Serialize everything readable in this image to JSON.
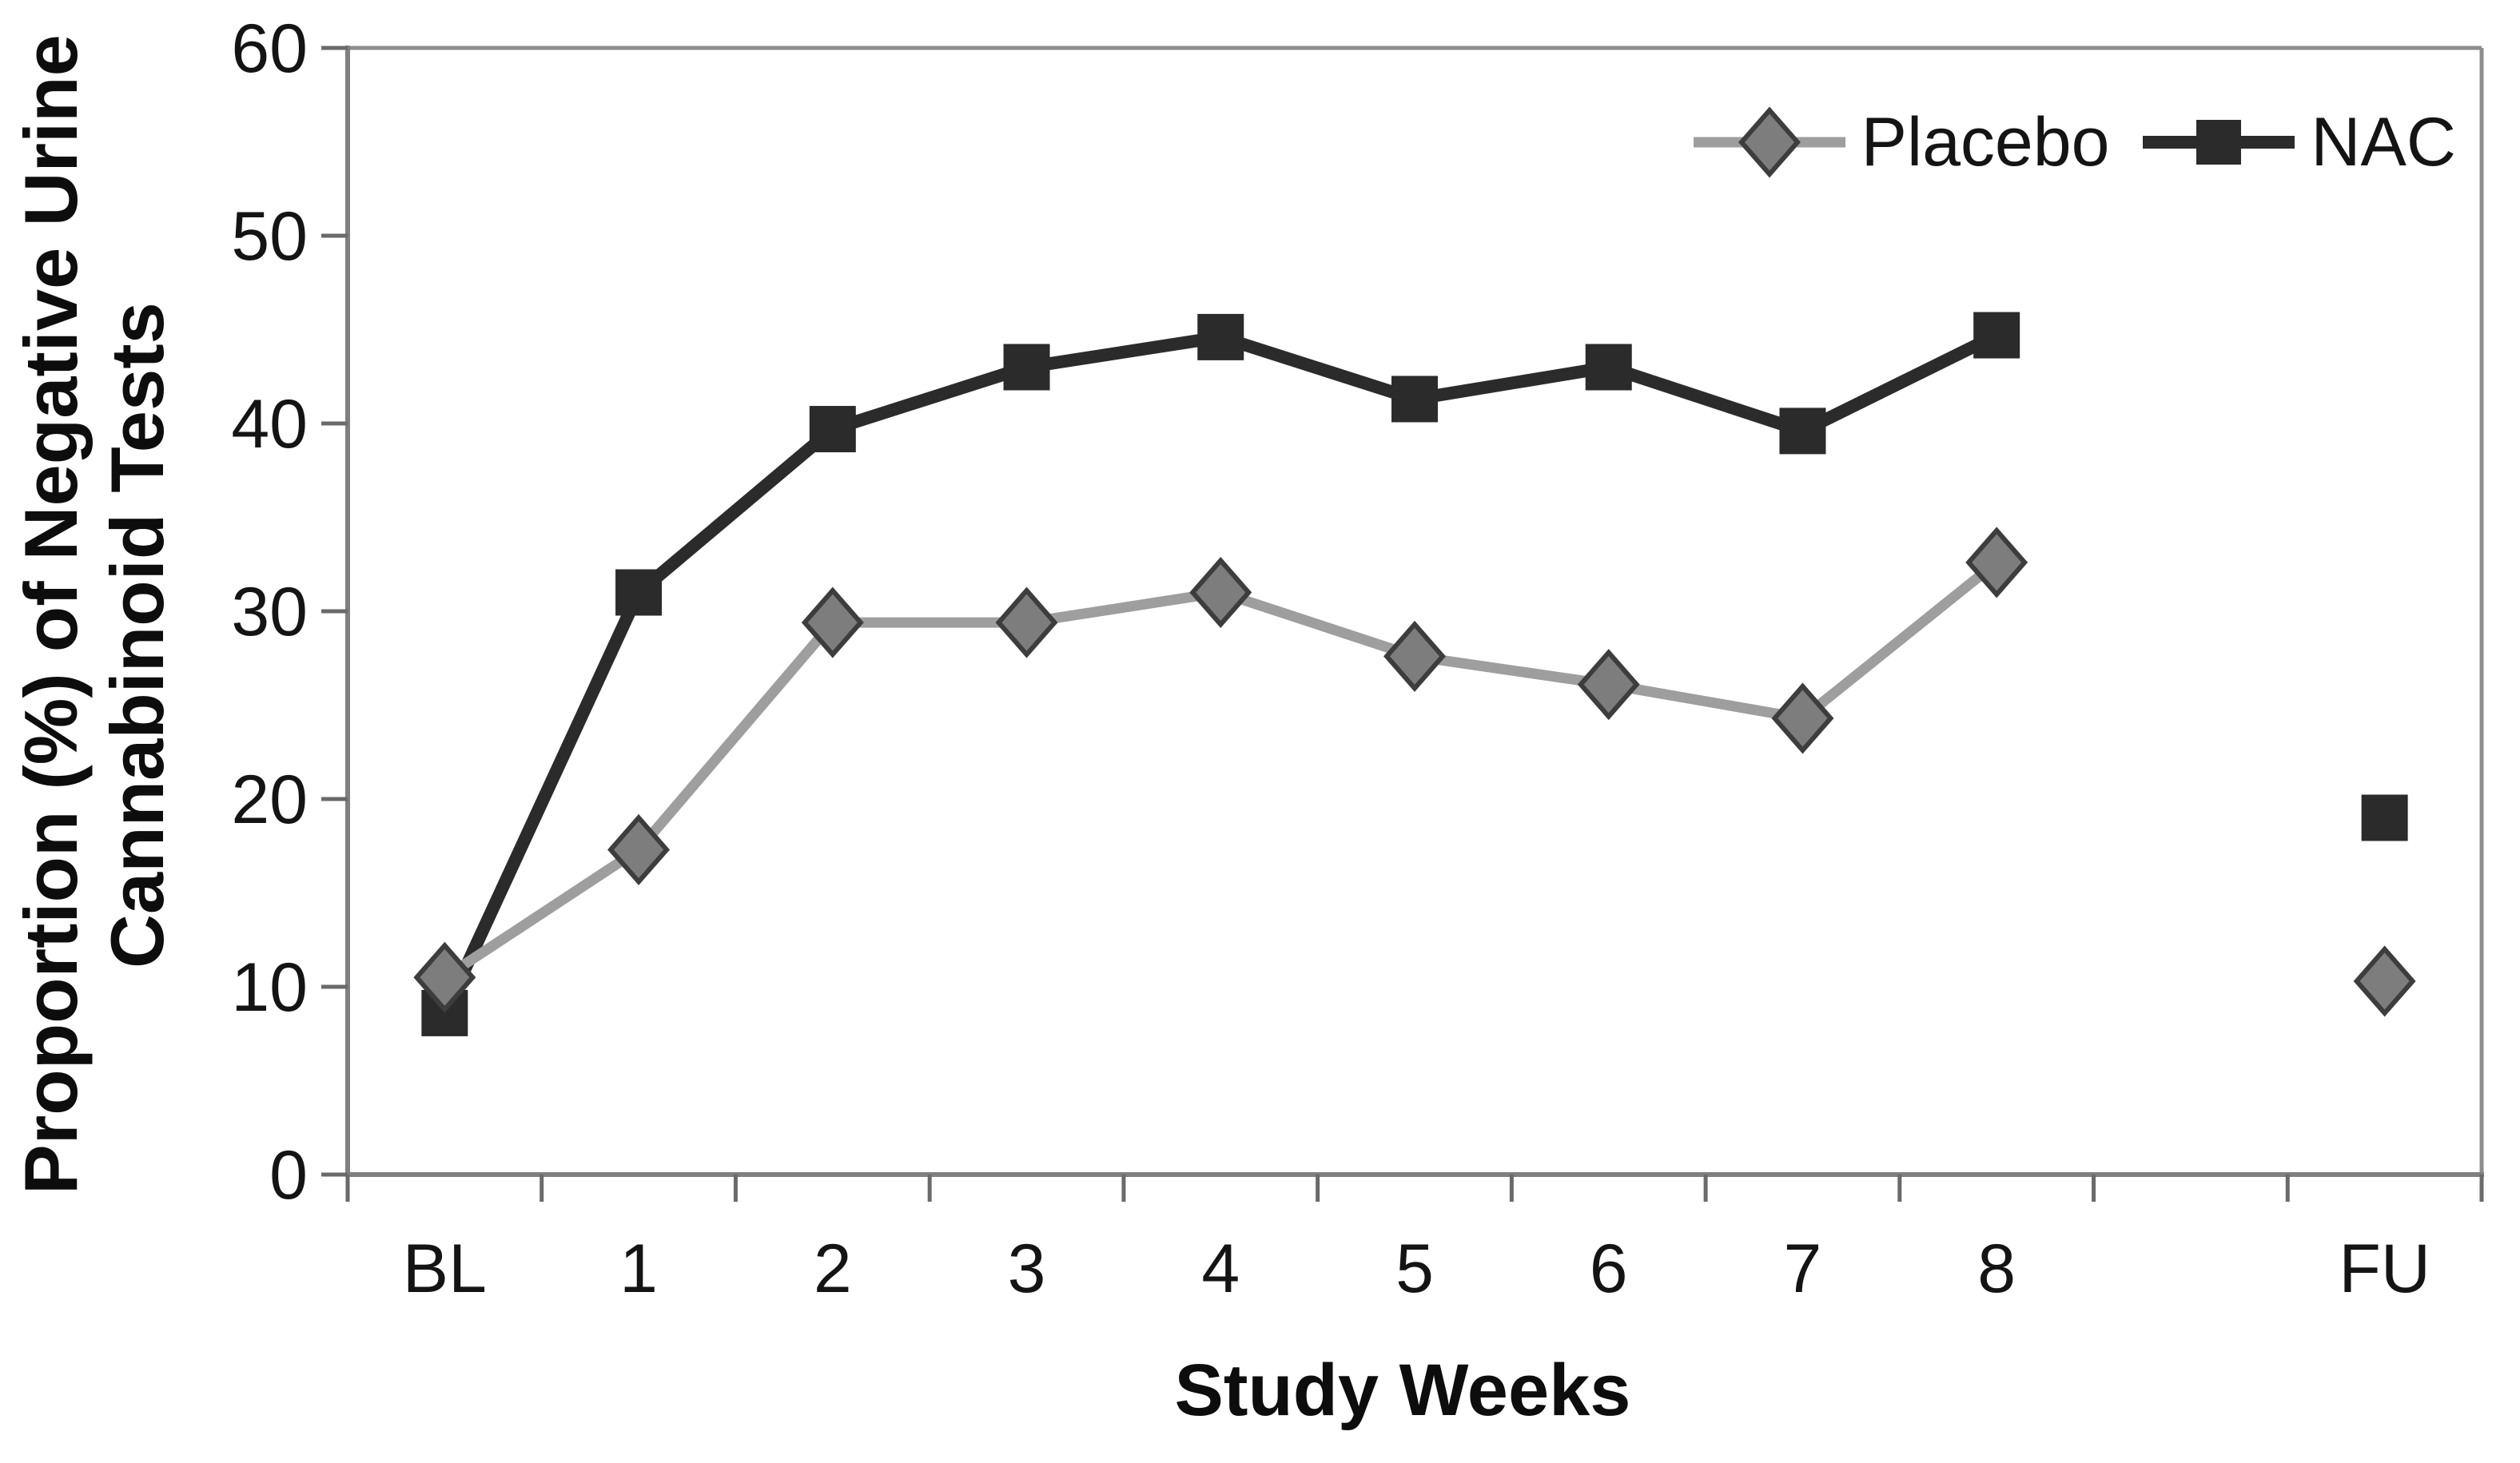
{
  "figure": {
    "y_axis_title_line1": "Proportion (%) of Negative Urine",
    "y_axis_title_line2": "Cannabinoid Tests",
    "x_axis_title": "Study Weeks"
  },
  "legend": {
    "position": "top-right-inside",
    "items": [
      {
        "label": "Placebo",
        "marker": "diamond"
      },
      {
        "label": "NAC",
        "marker": "square"
      }
    ]
  },
  "colors": {
    "background": "#ffffff",
    "axis_frame": "#7f7f7f",
    "tick": "#6a6a6a",
    "text": "#141414",
    "nac_line": "#2b2b2b",
    "nac_marker_fill": "#2b2b2b",
    "placebo_line": "#9e9e9e",
    "placebo_marker_fill": "#7d7d7d",
    "placebo_marker_stroke": "#3d3d3d"
  },
  "chart_data": {
    "type": "line",
    "categories": [
      "BL",
      "1",
      "2",
      "3",
      "4",
      "5",
      "6",
      "7",
      "8",
      "",
      "FU"
    ],
    "series": [
      {
        "name": "Placebo",
        "marker": "diamond",
        "line_color": "#9e9e9e",
        "marker_fill": "#7d7d7d",
        "marker_stroke": "#3d3d3d",
        "values": [
          10.5,
          17.3,
          29.4,
          29.4,
          31.0,
          27.6,
          26.1,
          24.3,
          32.6,
          null,
          10.3
        ]
      },
      {
        "name": "NAC",
        "marker": "square",
        "line_color": "#2b2b2b",
        "marker_fill": "#2b2b2b",
        "marker_stroke": "#2b2b2b",
        "values": [
          8.6,
          31.0,
          39.7,
          43.0,
          44.6,
          41.3,
          43.0,
          39.6,
          44.7,
          null,
          19.0
        ]
      }
    ],
    "title": "",
    "xlabel": "Study Weeks",
    "ylabel": "Proportion (%) of Negative Urine Cannabinoid Tests",
    "ylim": [
      0,
      60
    ],
    "yticks": [
      0,
      10,
      20,
      30,
      40,
      50,
      60
    ],
    "grid": false,
    "legend_position": "top-right-inside",
    "notes": "FU (follow-up) values are plotted as isolated markers, not connected by a line to week 8."
  }
}
